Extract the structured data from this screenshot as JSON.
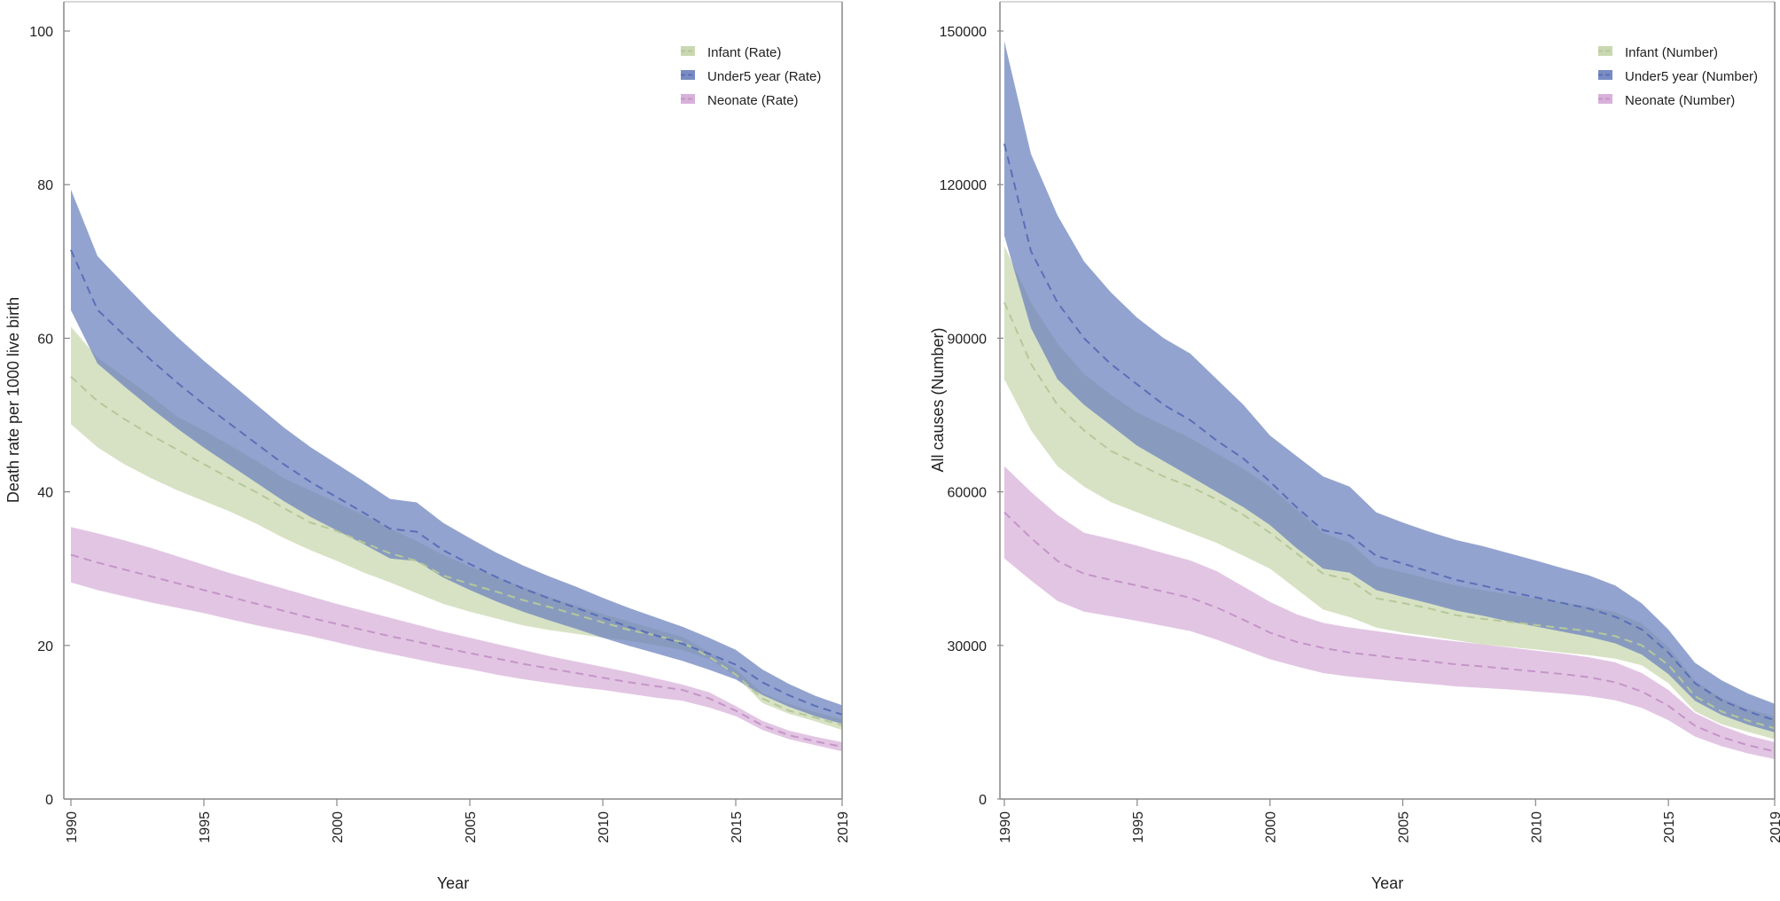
{
  "chart_data": [
    {
      "type": "area",
      "xlabel": "Year",
      "ylabel": "Death rate per 1000 live birth",
      "xlim": [
        1990,
        2019
      ],
      "ylim": [
        0,
        103
      ],
      "x_ticks": [
        "1990",
        "1995",
        "2000",
        "2005",
        "2010",
        "2015",
        "2019"
      ],
      "y_ticks": [
        "0",
        "20",
        "40",
        "60",
        "80",
        "100"
      ],
      "legend_position": "top-right",
      "x": [
        1990,
        1991,
        1992,
        1993,
        1994,
        1995,
        1996,
        1997,
        1998,
        1999,
        2000,
        2001,
        2002,
        2003,
        2004,
        2005,
        2006,
        2007,
        2008,
        2009,
        2010,
        2011,
        2012,
        2013,
        2014,
        2015,
        2016,
        2017,
        2018,
        2019
      ],
      "series": [
        {
          "name": "Infant (Rate)",
          "color": "#c4d4a8",
          "line_color": "#b5c89a",
          "mean": [
            55,
            51.8,
            49.5,
            47.4,
            45.5,
            43.6,
            41.7,
            39.9,
            37.9,
            36,
            34.9,
            33.4,
            32,
            31,
            29.1,
            28,
            27,
            25.9,
            25,
            24,
            23,
            22,
            21.3,
            20.4,
            18.5,
            16.2,
            13.1,
            11.5,
            10.6,
            9.6
          ],
          "lower": [
            48.8,
            45.8,
            43.6,
            41.8,
            40.2,
            38.8,
            37.4,
            35.8,
            34,
            32.4,
            31,
            29.5,
            28.2,
            26.8,
            25.4,
            24.4,
            23.5,
            22.6,
            22,
            21.5,
            21,
            20.6,
            20,
            19.4,
            18.2,
            16,
            12.5,
            11.1,
            10.1,
            9
          ],
          "upper": [
            61.5,
            57.5,
            55,
            52.5,
            49.8,
            48,
            46,
            44,
            41.8,
            40.2,
            38.6,
            37,
            35.2,
            33.6,
            31.8,
            30.3,
            28.9,
            27.6,
            26.3,
            25.2,
            24.1,
            23.1,
            22.1,
            21.1,
            19.1,
            16.9,
            13.8,
            12.4,
            11.3,
            10.4
          ]
        },
        {
          "name": "Under5 year (Rate)",
          "color": "#6a7fbc",
          "line_color": "#5a6fb8",
          "mean": [
            71.5,
            63.7,
            60.4,
            57.2,
            54.2,
            51.4,
            48.8,
            46.2,
            43.6,
            41.3,
            39.3,
            37.3,
            35.2,
            34.8,
            32.4,
            30.6,
            28.9,
            27.4,
            26.1,
            24.9,
            23.6,
            22.4,
            21.3,
            20.2,
            18.9,
            17.5,
            15.2,
            13.5,
            12.1,
            11
          ]
        },
        {
          "name": "Neonate (Rate)",
          "color": "#d4a9d6",
          "line_color": "#c495c8",
          "mean": [
            31.8,
            30.8,
            29.9,
            29,
            28.1,
            27.2,
            26.3,
            25.4,
            24.5,
            23.6,
            22.8,
            22,
            21.2,
            20.5,
            19.7,
            19,
            18.3,
            17.6,
            17,
            16.4,
            15.8,
            15.2,
            14.7,
            14.2,
            13.1,
            11.5,
            9.6,
            8.3,
            7.5,
            6.8
          ],
          "lower": [
            28.2,
            27.2,
            26.4,
            25.6,
            24.9,
            24.2,
            23.4,
            22.6,
            21.9,
            21.2,
            20.4,
            19.6,
            18.9,
            18.2,
            17.5,
            16.9,
            16.2,
            15.6,
            15.1,
            14.6,
            14.2,
            13.7,
            13.2,
            12.8,
            11.9,
            10.8,
            9,
            7.8,
            7,
            6.2
          ],
          "upper": [
            35.4,
            34.6,
            33.7,
            32.7,
            31.6,
            30.5,
            29.4,
            28.4,
            27.4,
            26.4,
            25.4,
            24.5,
            23.6,
            22.7,
            21.8,
            21,
            20.2,
            19.4,
            18.6,
            17.9,
            17.2,
            16.5,
            15.7,
            14.9,
            13.9,
            12.1,
            10.2,
            8.9,
            8.1,
            7.4
          ]
        }
      ]
    },
    {
      "type": "area",
      "xlabel": "Year",
      "ylabel": "All causes (Number)",
      "xlim": [
        1990,
        2019
      ],
      "ylim": [
        0,
        155000
      ],
      "x_ticks": [
        "1990",
        "1995",
        "2000",
        "2005",
        "2010",
        "2015",
        "2019"
      ],
      "y_ticks": [
        "0",
        "30000",
        "60000",
        "90000",
        "120000",
        "150000"
      ],
      "legend_position": "top-right",
      "x": [
        1990,
        1991,
        1992,
        1993,
        1994,
        1995,
        1996,
        1997,
        1998,
        1999,
        2000,
        2001,
        2002,
        2003,
        2004,
        2005,
        2006,
        2007,
        2008,
        2009,
        2010,
        2011,
        2012,
        2013,
        2014,
        2015,
        2016,
        2017,
        2018,
        2019
      ],
      "series": [
        {
          "name": "Infant (Number)",
          "color": "#c4d4a8",
          "line_color": "#b5c89a",
          "mean": [
            97000,
            85000,
            77000,
            72000,
            68000,
            65500,
            63000,
            61000,
            58500,
            55500,
            52000,
            48000,
            44000,
            42800,
            39200,
            38300,
            37200,
            35900,
            35200,
            34600,
            34000,
            33400,
            32800,
            31800,
            30000,
            26200,
            20100,
            17100,
            15300,
            13800
          ],
          "lower": [
            82000,
            72000,
            65000,
            61000,
            58000,
            56000,
            54000,
            52000,
            50000,
            47500,
            45000,
            41000,
            37000,
            35500,
            33500,
            32500,
            31800,
            31000,
            30200,
            29700,
            29200,
            28600,
            28100,
            27400,
            26100,
            22600,
            17100,
            14600,
            13100,
            11700
          ],
          "upper": [
            108000,
            97000,
            89000,
            83000,
            79000,
            75500,
            73000,
            70500,
            67500,
            64500,
            61000,
            56500,
            52000,
            50000,
            45500,
            44300,
            43000,
            41700,
            40800,
            40000,
            39200,
            38400,
            37600,
            36500,
            34300,
            29700,
            23100,
            19700,
            17600,
            16100
          ]
        },
        {
          "name": "Under5 year (Number)",
          "color": "#6a7fbc",
          "line_color": "#5a6fb8",
          "mean": [
            128000,
            107000,
            97000,
            90000,
            85000,
            81000,
            77000,
            74000,
            70000,
            66500,
            62000,
            57000,
            52500,
            51500,
            47500,
            46000,
            44400,
            42800,
            41700,
            40500,
            39400,
            38300,
            37200,
            35600,
            33100,
            28600,
            22600,
            19300,
            17100,
            15400
          ],
          "lower": [
            110000,
            92000,
            82000,
            77000,
            73000,
            69000,
            66000,
            63000,
            60000,
            57000,
            53500,
            49000,
            45000,
            44200,
            40800,
            39500,
            38200,
            36800,
            35800,
            34700,
            33700,
            32700,
            31700,
            30400,
            28200,
            24400,
            19200,
            16400,
            14500,
            13000
          ],
          "upper": [
            148000,
            126000,
            114000,
            105000,
            99000,
            94000,
            90000,
            87000,
            82000,
            77000,
            71000,
            67000,
            63000,
            61000,
            56000,
            54000,
            52200,
            50600,
            49400,
            48000,
            46600,
            45100,
            43700,
            41700,
            38200,
            33100,
            26600,
            23200,
            20600,
            18600
          ]
        },
        {
          "name": "Neonate (Number)",
          "color": "#d4a9d6",
          "line_color": "#c495c8",
          "mean": [
            56000,
            51000,
            46500,
            44000,
            42800,
            41700,
            40500,
            39300,
            37400,
            35000,
            32500,
            30700,
            29500,
            28600,
            28000,
            27400,
            26900,
            26300,
            25900,
            25400,
            24900,
            24400,
            23800,
            22800,
            21000,
            18200,
            14300,
            12100,
            10500,
            9300
          ],
          "lower": [
            47000,
            42700,
            38700,
            36600,
            35700,
            34800,
            33800,
            32800,
            31100,
            29200,
            27300,
            25900,
            24600,
            23900,
            23400,
            22900,
            22500,
            22000,
            21700,
            21400,
            21000,
            20600,
            20100,
            19300,
            17800,
            15400,
            12200,
            10300,
            8900,
            7800
          ],
          "upper": [
            65000,
            60000,
            55500,
            52000,
            50800,
            49500,
            48000,
            46600,
            44500,
            41500,
            38500,
            36100,
            34400,
            33500,
            32800,
            32100,
            31400,
            30800,
            30200,
            29600,
            29000,
            28400,
            27700,
            26700,
            24600,
            21300,
            16800,
            14300,
            12400,
            11100
          ]
        }
      ]
    }
  ]
}
